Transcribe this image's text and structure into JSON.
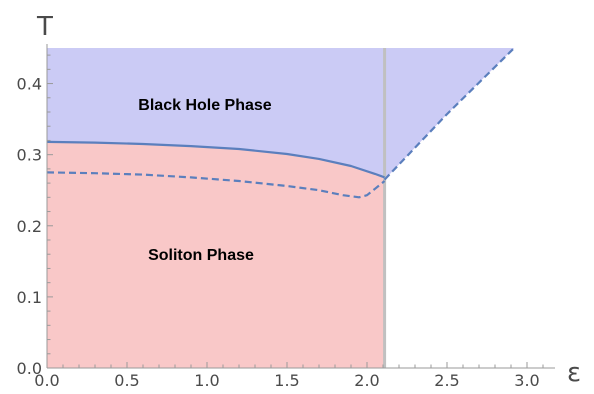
{
  "chart_data": {
    "type": "area",
    "title": "",
    "xlabel": "ε",
    "ylabel": "T",
    "xlim": [
      0.0,
      3.15
    ],
    "ylim": [
      0.0,
      0.45
    ],
    "x_ticks": [
      0.0,
      0.5,
      1.0,
      1.5,
      2.0,
      2.5,
      3.0
    ],
    "x_tick_labels": [
      "0.0",
      "0.5",
      "1.0",
      "1.5",
      "2.0",
      "2.5",
      "3.0"
    ],
    "y_ticks": [
      0.0,
      0.1,
      0.2,
      0.3,
      0.4
    ],
    "y_tick_labels": [
      "0.0",
      "0.1",
      "0.2",
      "0.3",
      "0.4"
    ],
    "grid": false,
    "regions": [
      {
        "label": "Black Hole Phase",
        "color": "#cbcbf5"
      },
      {
        "label": "Soliton Phase",
        "color": "#f9c8c8"
      }
    ],
    "vertical_line": {
      "x": 2.11,
      "color": "#c0c0c0"
    },
    "series": [
      {
        "style": "solid",
        "color": "#5b7fbd",
        "x": [
          0.0,
          0.3,
          0.6,
          0.9,
          1.2,
          1.5,
          1.7,
          1.9,
          2.05,
          2.11
        ],
        "y": [
          0.318,
          0.317,
          0.315,
          0.312,
          0.308,
          0.301,
          0.294,
          0.284,
          0.273,
          0.268
        ]
      },
      {
        "style": "dashed",
        "color": "#5b7fbd",
        "x": [
          0.0,
          0.3,
          0.6,
          0.9,
          1.2,
          1.5,
          1.7,
          1.85,
          1.95,
          2.0,
          2.05,
          2.11
        ],
        "y": [
          0.275,
          0.274,
          0.272,
          0.268,
          0.263,
          0.256,
          0.25,
          0.243,
          0.24,
          0.243,
          0.252,
          0.263
        ]
      },
      {
        "style": "dashed",
        "color": "#5b7fbd",
        "x": [
          2.11,
          2.5,
          2.92
        ],
        "y": [
          0.265,
          0.357,
          0.45
        ]
      }
    ]
  }
}
